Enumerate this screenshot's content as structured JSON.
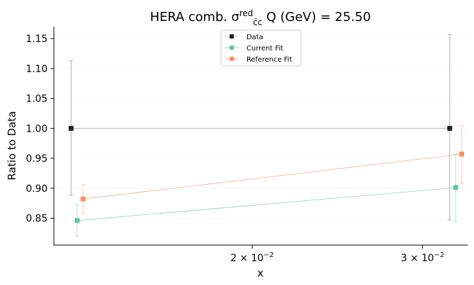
{
  "chart_data": {
    "type": "line",
    "title": "HERA comb. σ",
    "title_super": "red",
    "title_sub": "c̄c",
    "title_rest": " Q (GeV) = 25.50",
    "xlabel": "x",
    "ylabel": "Ratio to Data",
    "xscale": "log",
    "xlim": [
      0.01248,
      0.0334
    ],
    "ylim": [
      0.805,
      1.17
    ],
    "yticks": [
      0.85,
      0.9,
      0.95,
      1.0,
      1.05,
      1.1,
      1.15
    ],
    "ytick_labels": [
      "0.85",
      "0.90",
      "0.95",
      "1.00",
      "1.05",
      "1.10",
      "1.15"
    ],
    "xticks": [
      0.02,
      0.03
    ],
    "xtick_labels": [
      {
        "base": "2 × 10",
        "exp": "−2"
      },
      {
        "base": "3 × 10",
        "exp": "−2"
      }
    ],
    "legend_position": "top-center",
    "series": [
      {
        "name": "Data",
        "color": "#222222",
        "line_color": "#b0b0b0",
        "x": [
          0.013,
          0.032
        ],
        "y": [
          1.0,
          1.0
        ],
        "err_low": [
          0.888,
          0.847
        ],
        "err_high": [
          1.113,
          1.157
        ]
      },
      {
        "name": "Current Fit",
        "color": "#66c2a5",
        "line_color": "#66c2a5",
        "x": [
          0.01319,
          0.03246
        ],
        "y": [
          0.846,
          0.901
        ],
        "err_low": [
          0.82,
          0.845
        ],
        "err_high": [
          0.872,
          0.957
        ]
      },
      {
        "name": "Reference Fit",
        "color": "#fc8d62",
        "line_color": "#fc8d62",
        "x": [
          0.01338,
          0.03293
        ],
        "y": [
          0.882,
          0.957
        ],
        "err_low": [
          0.858,
          0.908
        ],
        "err_high": [
          0.906,
          1.005
        ]
      }
    ]
  }
}
